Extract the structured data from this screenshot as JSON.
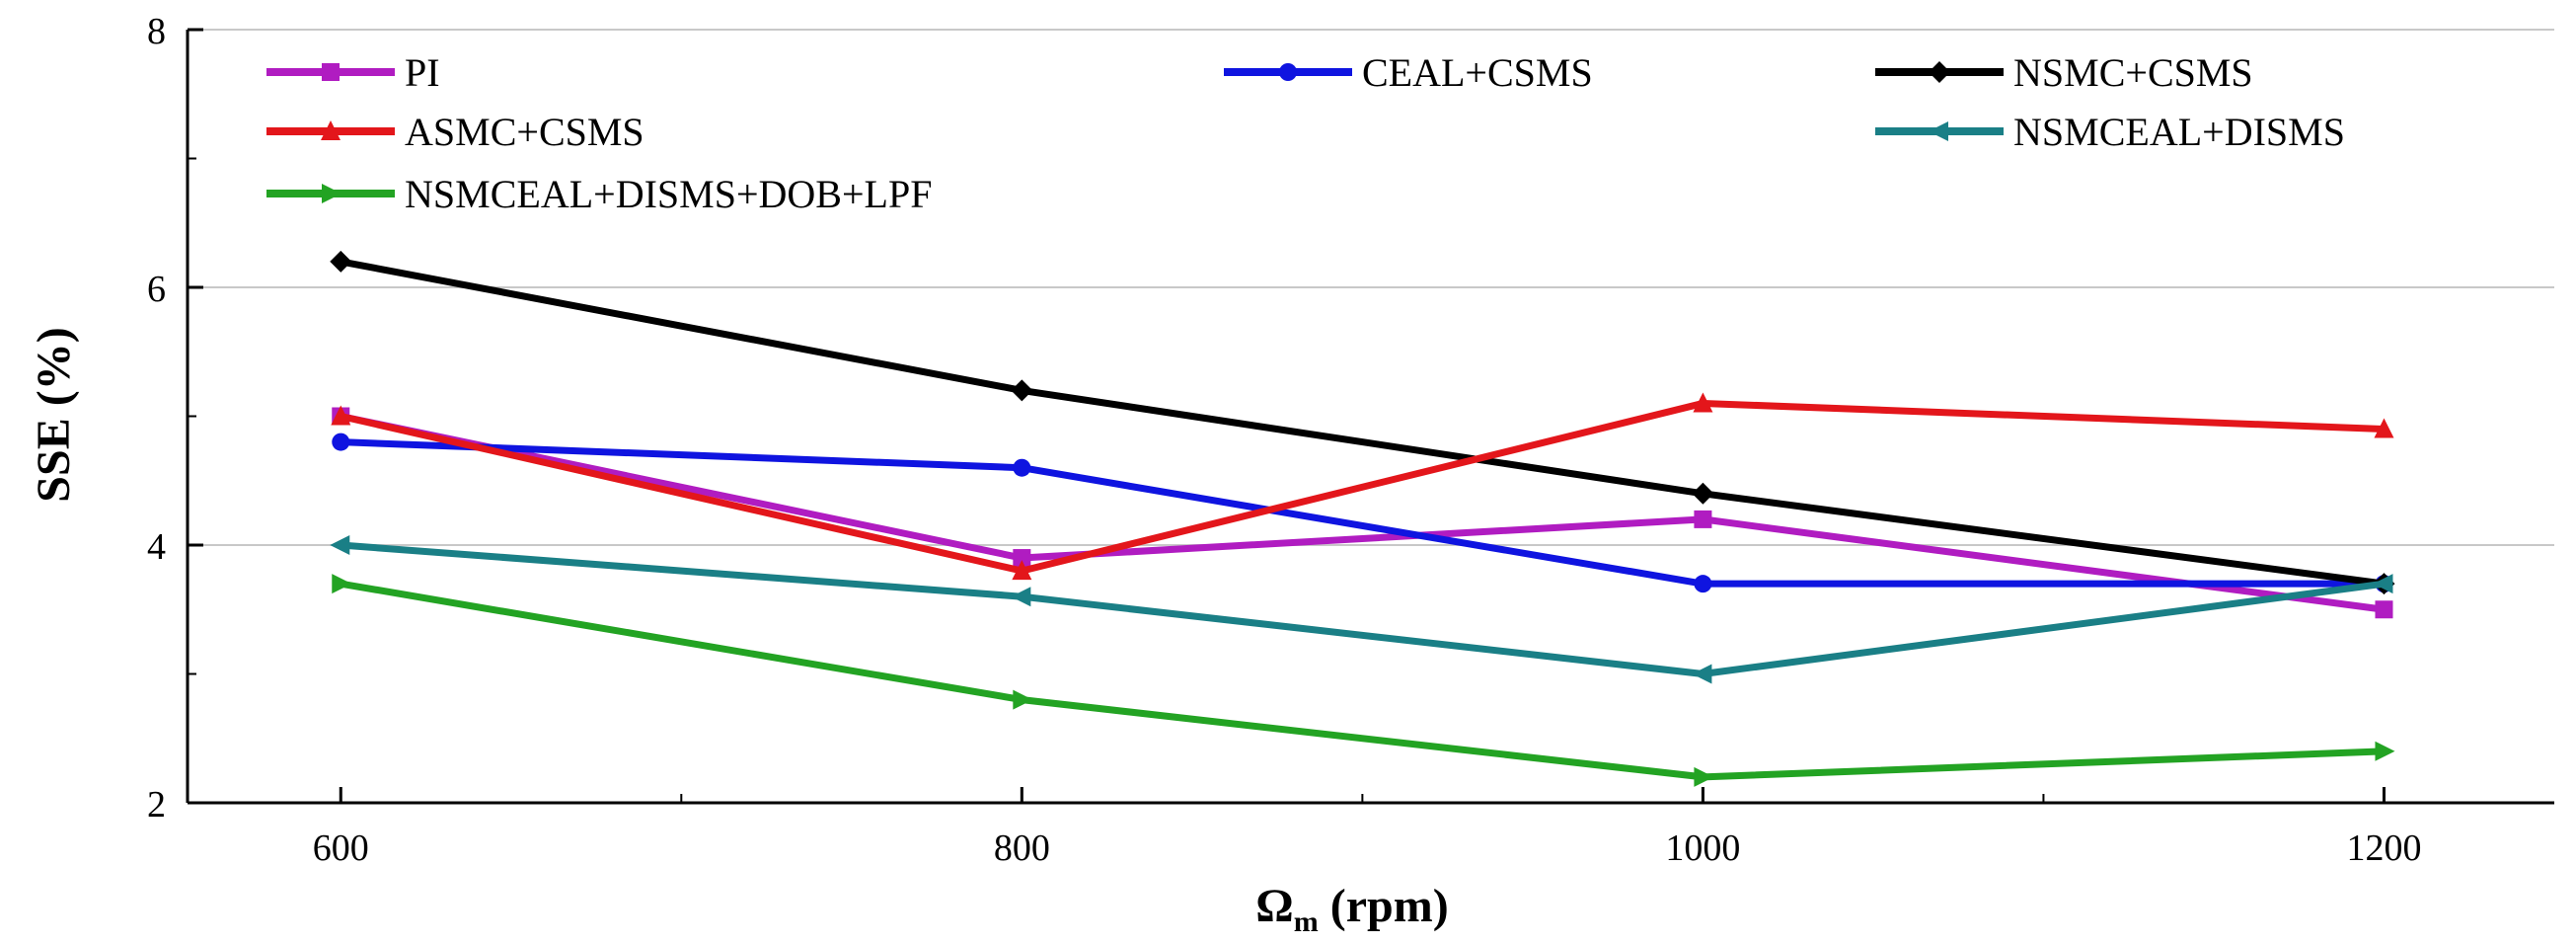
{
  "chart_data": {
    "type": "line",
    "title": "",
    "xlabel": "Ωm (rpm)",
    "xlabel_main": "Ω",
    "xlabel_sub": "m",
    "xlabel_unit": " (rpm)",
    "ylabel": "SSE (%)",
    "x": [
      600,
      800,
      1000,
      1200
    ],
    "xlim": [
      555,
      1250
    ],
    "ylim": [
      2,
      8
    ],
    "xticks": [
      600,
      800,
      1000,
      1200
    ],
    "yticks": [
      2,
      4,
      6,
      8
    ],
    "grid": "horizontal",
    "legend_position": "top",
    "series": [
      {
        "name": "PI",
        "color": "#b01cc1",
        "marker": "square",
        "values": [
          5.0,
          3.9,
          4.2,
          3.5
        ]
      },
      {
        "name": "CEAL+CSMS",
        "color": "#0f14e0",
        "marker": "circle",
        "values": [
          4.8,
          4.6,
          3.7,
          3.7
        ]
      },
      {
        "name": "NSMC+CSMS",
        "color": "#000000",
        "marker": "diamond",
        "values": [
          6.2,
          5.2,
          4.4,
          3.7
        ]
      },
      {
        "name": "ASMC+CSMS",
        "color": "#e3161b",
        "marker": "triangle-up",
        "values": [
          5.0,
          3.8,
          5.1,
          4.9
        ]
      },
      {
        "name": "NSMCEAL+DISMS",
        "color": "#1a7f86",
        "marker": "triangle-left",
        "values": [
          4.0,
          3.6,
          3.0,
          3.7
        ]
      },
      {
        "name": "NSMCEAL+DISMS+DOB+LPF",
        "color": "#23a323",
        "marker": "triangle-right",
        "values": [
          3.7,
          2.8,
          2.2,
          2.4
        ]
      }
    ]
  }
}
